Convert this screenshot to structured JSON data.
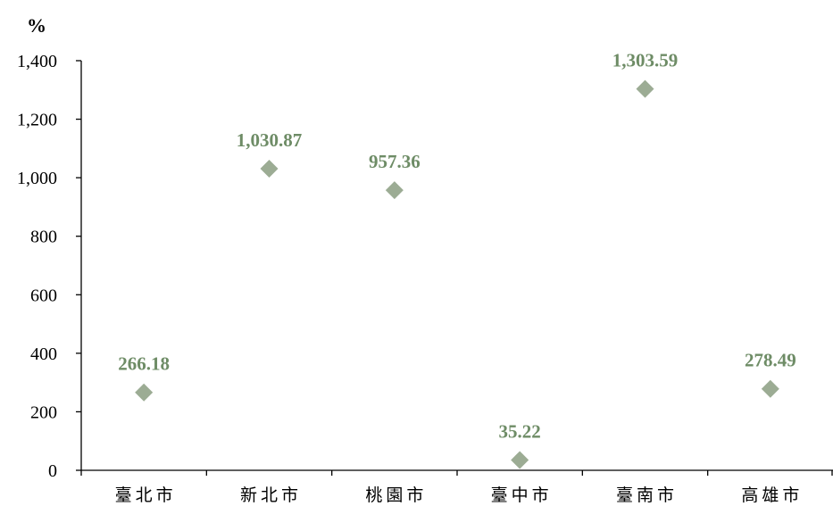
{
  "chart_data": {
    "type": "scatter",
    "ylabel": "%",
    "categories": [
      "臺北市",
      "新北市",
      "桃園市",
      "臺中市",
      "臺南市",
      "高雄市"
    ],
    "values": [
      266.18,
      1030.87,
      957.36,
      35.22,
      1303.59,
      278.49
    ],
    "value_labels": [
      "266.18",
      "1,030.87",
      "957.36",
      "35.22",
      "1,303.59",
      "278.49"
    ],
    "ylim": [
      0,
      1400
    ],
    "yticks": [
      0,
      200,
      400,
      600,
      800,
      1000,
      1200,
      1400
    ],
    "ytick_labels": [
      "0",
      "200",
      "400",
      "600",
      "800",
      "1,000",
      "1,200",
      "1,400"
    ],
    "marker": "diamond",
    "marker_color": "#9cac94",
    "label_color": "#6e8c66",
    "grid": false,
    "legend": "none"
  }
}
